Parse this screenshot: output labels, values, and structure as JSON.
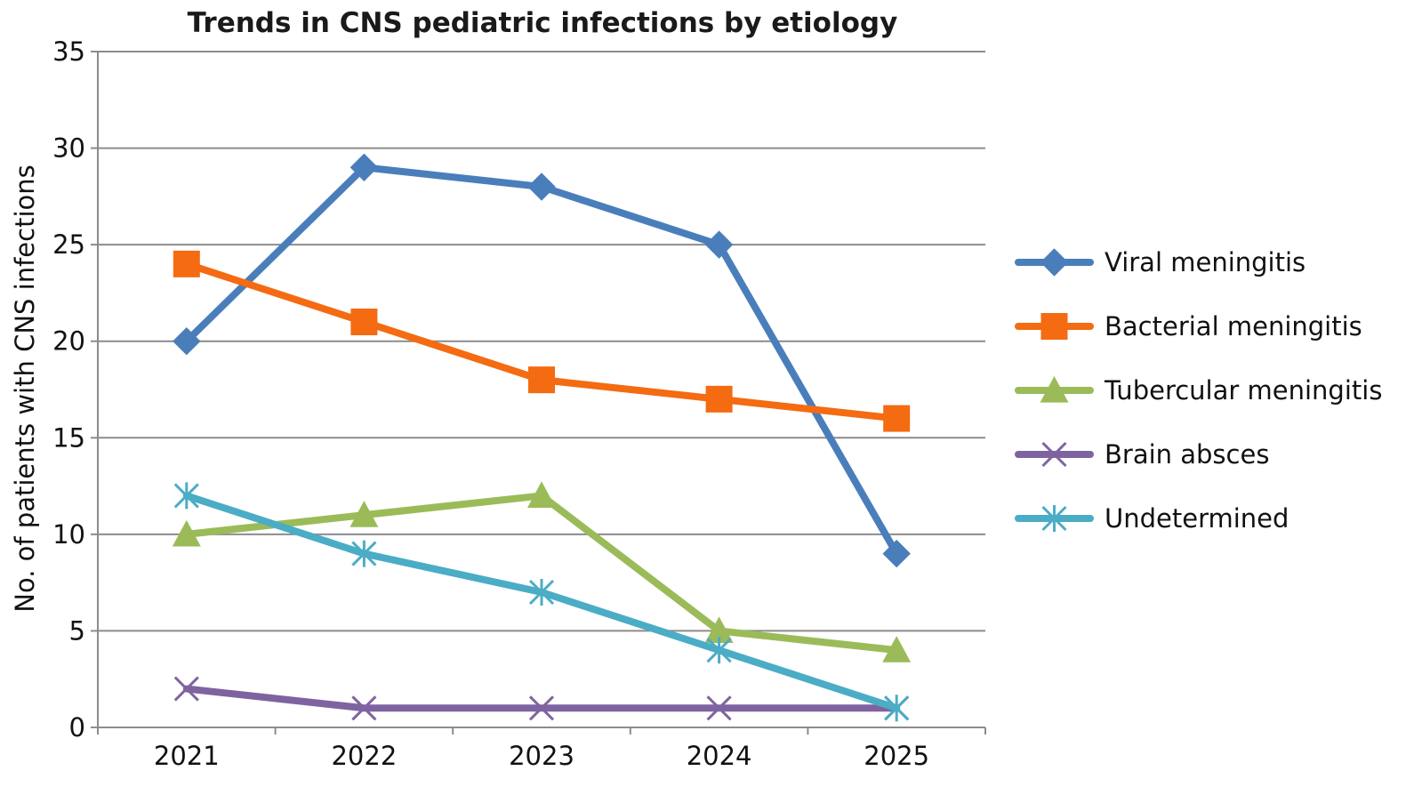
{
  "chart_data": {
    "type": "line",
    "title": "Trends in CNS pediatric infections by etiology",
    "xlabel": "",
    "ylabel": "No. of patients with CNS infections",
    "categories": [
      "2021",
      "2022",
      "2023",
      "2024",
      "2025"
    ],
    "ylim": [
      0,
      35
    ],
    "yticks": [
      0,
      5,
      10,
      15,
      20,
      25,
      30,
      35
    ],
    "grid": true,
    "legend_position": "right",
    "series": [
      {
        "name": "Viral meningitis",
        "values": [
          20,
          29,
          28,
          25,
          9
        ],
        "color": "#4a7ebb",
        "marker": "diamond"
      },
      {
        "name": "Bacterial meningitis",
        "values": [
          24,
          21,
          18,
          17,
          16
        ],
        "color": "#f46b12",
        "marker": "square"
      },
      {
        "name": "Tubercular meningitis",
        "values": [
          10,
          11,
          12,
          5,
          4
        ],
        "color": "#9bbb59",
        "marker": "triangle"
      },
      {
        "name": "Brain absces",
        "values": [
          2,
          1,
          1,
          1,
          1
        ],
        "color": "#7f63a1",
        "marker": "x"
      },
      {
        "name": "Undetermined",
        "values": [
          12,
          9,
          7,
          4,
          1
        ],
        "color": "#4bacc6",
        "marker": "star"
      }
    ]
  }
}
